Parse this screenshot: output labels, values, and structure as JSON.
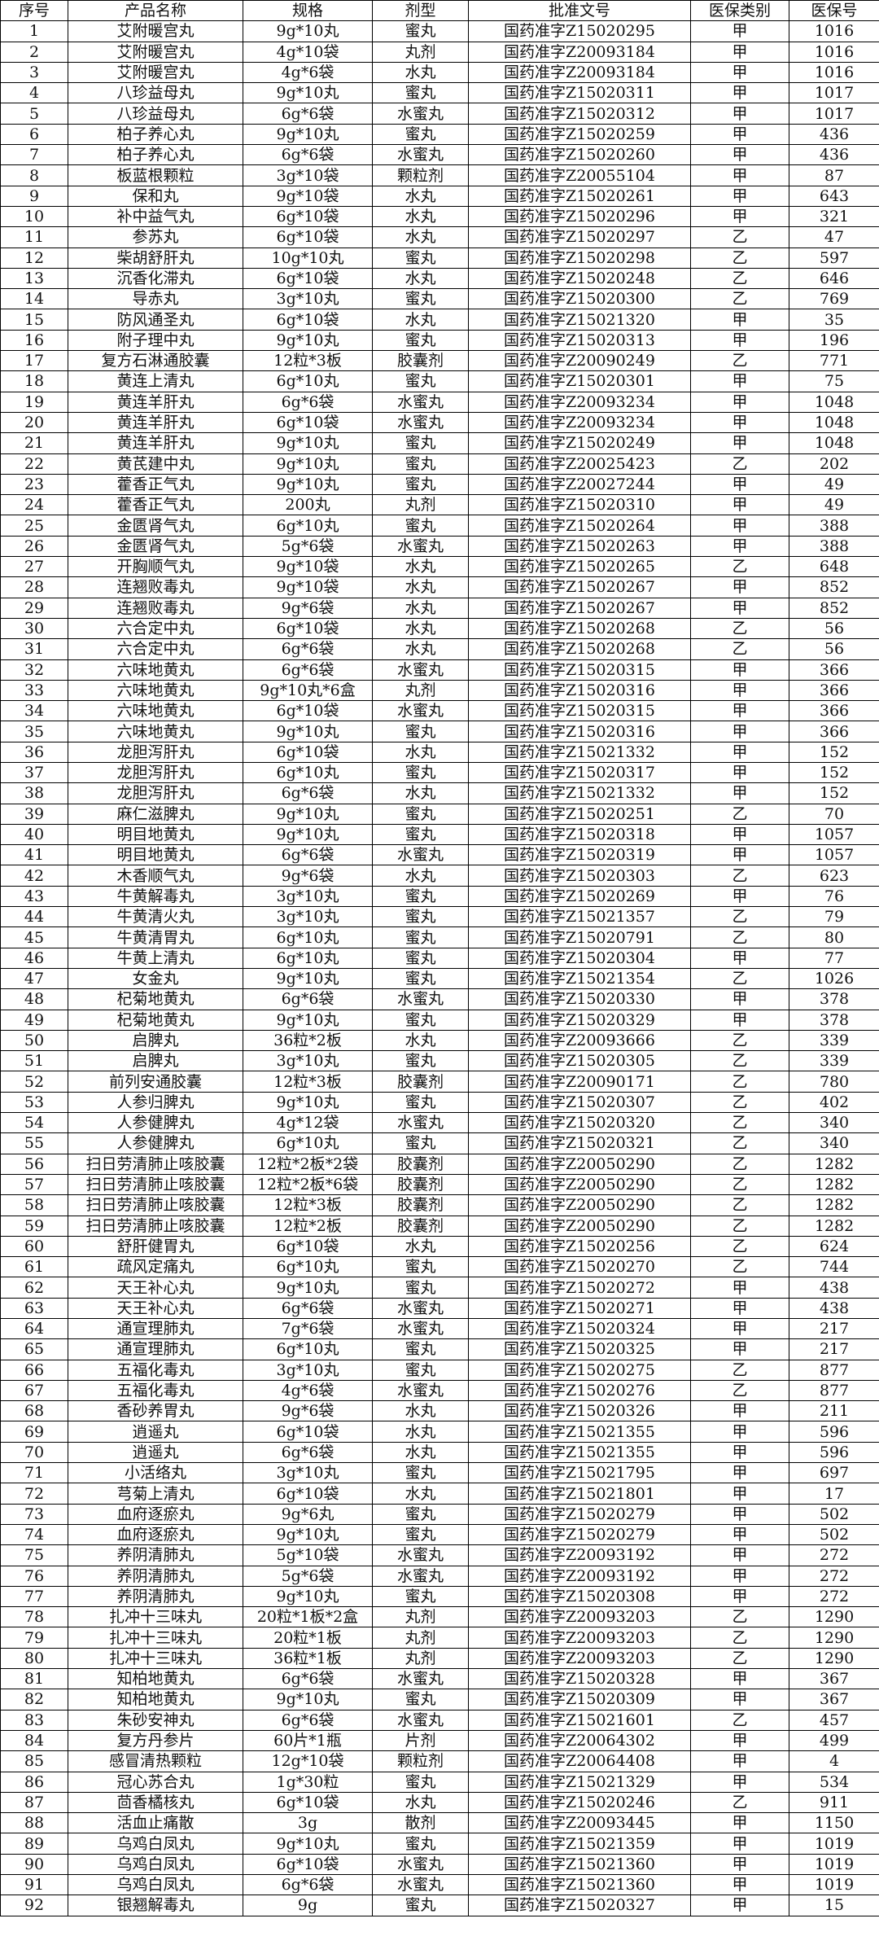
{
  "headers": [
    "序号",
    "产品名称",
    "规格",
    "剂型",
    "批准文号",
    "医保类别",
    "医保号"
  ],
  "rows": [
    [
      "1",
      "艾附暖宫丸",
      "9g*10丸",
      "蜜丸",
      "国药准字Z15020295",
      "甲",
      "1016"
    ],
    [
      "2",
      "艾附暖宫丸",
      "4g*10袋",
      "丸剂",
      "国药准字Z20093184",
      "甲",
      "1016"
    ],
    [
      "3",
      "艾附暖宫丸",
      "4g*6袋",
      "水丸",
      "国药准字Z20093184",
      "甲",
      "1016"
    ],
    [
      "4",
      "八珍益母丸",
      "9g*10丸",
      "蜜丸",
      "国药准字Z15020311",
      "甲",
      "1017"
    ],
    [
      "5",
      "八珍益母丸",
      "6g*6袋",
      "水蜜丸",
      "国药准字Z15020312",
      "甲",
      "1017"
    ],
    [
      "6",
      "柏子养心丸",
      "9g*10丸",
      "蜜丸",
      "国药准字Z15020259",
      "甲",
      "436"
    ],
    [
      "7",
      "柏子养心丸",
      "6g*6袋",
      "水蜜丸",
      "国药准字Z15020260",
      "甲",
      "436"
    ],
    [
      "8",
      "板蓝根颗粒",
      "3g*10袋",
      "颗粒剂",
      "国药准字Z20055104",
      "甲",
      "87"
    ],
    [
      "9",
      "保和丸",
      "9g*10袋",
      "水丸",
      "国药准字Z15020261",
      "甲",
      "643"
    ],
    [
      "10",
      "补中益气丸",
      "6g*10袋",
      "水丸",
      "国药准字Z15020296",
      "甲",
      "321"
    ],
    [
      "11",
      "参苏丸",
      "6g*10袋",
      "水丸",
      "国药准字Z15020297",
      "乙",
      "47"
    ],
    [
      "12",
      "柴胡舒肝丸",
      "10g*10丸",
      "蜜丸",
      "国药准字Z15020298",
      "乙",
      "597"
    ],
    [
      "13",
      "沉香化滞丸",
      "6g*10袋",
      "水丸",
      "国药准字Z15020248",
      "乙",
      "646"
    ],
    [
      "14",
      "导赤丸",
      "3g*10丸",
      "蜜丸",
      "国药准字Z15020300",
      "乙",
      "769"
    ],
    [
      "15",
      "防风通圣丸",
      "6g*10袋",
      "水丸",
      "国药准字Z15021320",
      "甲",
      "35"
    ],
    [
      "16",
      "附子理中丸",
      "9g*10丸",
      "蜜丸",
      "国药准字Z15020313",
      "甲",
      "196"
    ],
    [
      "17",
      "复方石淋通胶囊",
      "12粒*3板",
      "胶囊剂",
      "国药准字Z20090249",
      "乙",
      "771"
    ],
    [
      "18",
      "黄连上清丸",
      "6g*10丸",
      "蜜丸",
      "国药准字Z15020301",
      "甲",
      "75"
    ],
    [
      "19",
      "黄连羊肝丸",
      "6g*6袋",
      "水蜜丸",
      "国药准字Z20093234",
      "甲",
      "1048"
    ],
    [
      "20",
      "黄连羊肝丸",
      "6g*10袋",
      "水蜜丸",
      "国药准字Z20093234",
      "甲",
      "1048"
    ],
    [
      "21",
      "黄连羊肝丸",
      "9g*10丸",
      "蜜丸",
      "国药准字Z15020249",
      "甲",
      "1048"
    ],
    [
      "22",
      "黄芪建中丸",
      "9g*10丸",
      "蜜丸",
      "国药准字Z20025423",
      "乙",
      "202"
    ],
    [
      "23",
      "藿香正气丸",
      "9g*10丸",
      "蜜丸",
      "国药准字Z20027244",
      "甲",
      "49"
    ],
    [
      "24",
      "藿香正气丸",
      "200丸",
      "丸剂",
      "国药准字Z15020310",
      "甲",
      "49"
    ],
    [
      "25",
      "金匮肾气丸",
      "6g*10丸",
      "蜜丸",
      "国药准字Z15020264",
      "甲",
      "388"
    ],
    [
      "26",
      "金匮肾气丸",
      "5g*6袋",
      "水蜜丸",
      "国药准字Z15020263",
      "甲",
      "388"
    ],
    [
      "27",
      "开胸顺气丸",
      "9g*10袋",
      "水丸",
      "国药准字Z15020265",
      "乙",
      "648"
    ],
    [
      "28",
      "连翘败毒丸",
      "9g*10袋",
      "水丸",
      "国药准字Z15020267",
      "甲",
      "852"
    ],
    [
      "29",
      "连翘败毒丸",
      "9g*6袋",
      "水丸",
      "国药准字Z15020267",
      "甲",
      "852"
    ],
    [
      "30",
      "六合定中丸",
      "6g*10袋",
      "水丸",
      "国药准字Z15020268",
      "乙",
      "56"
    ],
    [
      "31",
      "六合定中丸",
      "6g*6袋",
      "水丸",
      "国药准字Z15020268",
      "乙",
      "56"
    ],
    [
      "32",
      "六味地黄丸",
      "6g*6袋",
      "水蜜丸",
      "国药准字Z15020315",
      "甲",
      "366"
    ],
    [
      "33",
      "六味地黄丸",
      "9g*10丸*6盒",
      "丸剂",
      "国药准字Z15020316",
      "甲",
      "366"
    ],
    [
      "34",
      "六味地黄丸",
      "6g*10袋",
      "水蜜丸",
      "国药准字Z15020315",
      "甲",
      "366"
    ],
    [
      "35",
      "六味地黄丸",
      "9g*10丸",
      "蜜丸",
      "国药准字Z15020316",
      "甲",
      "366"
    ],
    [
      "36",
      "龙胆泻肝丸",
      "6g*10袋",
      "水丸",
      "国药准字Z15021332",
      "甲",
      "152"
    ],
    [
      "37",
      "龙胆泻肝丸",
      "6g*10丸",
      "蜜丸",
      "国药准字Z15020317",
      "甲",
      "152"
    ],
    [
      "38",
      "龙胆泻肝丸",
      "6g*6袋",
      "水丸",
      "国药准字Z15021332",
      "甲",
      "152"
    ],
    [
      "39",
      "麻仁滋脾丸",
      "9g*10丸",
      "蜜丸",
      "国药准字Z15020251",
      "乙",
      "70"
    ],
    [
      "40",
      "明目地黄丸",
      "9g*10丸",
      "蜜丸",
      "国药准字Z15020318",
      "甲",
      "1057"
    ],
    [
      "41",
      "明目地黄丸",
      "6g*6袋",
      "水蜜丸",
      "国药准字Z15020319",
      "甲",
      "1057"
    ],
    [
      "42",
      "木香顺气丸",
      "9g*6袋",
      "水丸",
      "国药准字Z15020303",
      "乙",
      "623"
    ],
    [
      "43",
      "牛黄解毒丸",
      "3g*10丸",
      "蜜丸",
      "国药准字Z15020269",
      "甲",
      "76"
    ],
    [
      "44",
      "牛黄清火丸",
      "3g*10丸",
      "蜜丸",
      "国药准字Z15021357",
      "乙",
      "79"
    ],
    [
      "45",
      "牛黄清胃丸",
      "6g*10丸",
      "蜜丸",
      "国药准字Z15020791",
      "乙",
      "80"
    ],
    [
      "46",
      "牛黄上清丸",
      "6g*10丸",
      "蜜丸",
      "国药准字Z15020304",
      "甲",
      "77"
    ],
    [
      "47",
      "女金丸",
      "9g*10丸",
      "蜜丸",
      "国药准字Z15021354",
      "乙",
      "1026"
    ],
    [
      "48",
      "杞菊地黄丸",
      "6g*6袋",
      "水蜜丸",
      "国药准字Z15020330",
      "甲",
      "378"
    ],
    [
      "49",
      "杞菊地黄丸",
      "9g*10丸",
      "蜜丸",
      "国药准字Z15020329",
      "甲",
      "378"
    ],
    [
      "50",
      "启脾丸",
      "36粒*2板",
      "水丸",
      "国药准字Z20093666",
      "乙",
      "339"
    ],
    [
      "51",
      "启脾丸",
      "3g*10丸",
      "蜜丸",
      "国药准字Z15020305",
      "乙",
      "339"
    ],
    [
      "52",
      "前列安通胶囊",
      "12粒*3板",
      "胶囊剂",
      "国药准字Z20090171",
      "乙",
      "780"
    ],
    [
      "53",
      "人参归脾丸",
      "9g*10丸",
      "蜜丸",
      "国药准字Z15020307",
      "乙",
      "402"
    ],
    [
      "54",
      "人参健脾丸",
      "4g*12袋",
      "水蜜丸",
      "国药准字Z15020320",
      "乙",
      "340"
    ],
    [
      "55",
      "人参健脾丸",
      "6g*10丸",
      "蜜丸",
      "国药准字Z15020321",
      "乙",
      "340"
    ],
    [
      "56",
      "扫日劳清肺止咳胶囊",
      "12粒*2板*2袋",
      "胶囊剂",
      "国药准字Z20050290",
      "乙",
      "1282"
    ],
    [
      "57",
      "扫日劳清肺止咳胶囊",
      "12粒*2板*6袋",
      "胶囊剂",
      "国药准字Z20050290",
      "乙",
      "1282"
    ],
    [
      "58",
      "扫日劳清肺止咳胶囊",
      "12粒*3板",
      "胶囊剂",
      "国药准字Z20050290",
      "乙",
      "1282"
    ],
    [
      "59",
      "扫日劳清肺止咳胶囊",
      "12粒*2板",
      "胶囊剂",
      "国药准字Z20050290",
      "乙",
      "1282"
    ],
    [
      "60",
      "舒肝健胃丸",
      "6g*10袋",
      "水丸",
      "国药准字Z15020256",
      "乙",
      "624"
    ],
    [
      "61",
      "疏风定痛丸",
      "6g*10丸",
      "蜜丸",
      "国药准字Z15020270",
      "乙",
      "744"
    ],
    [
      "62",
      "天王补心丸",
      "9g*10丸",
      "蜜丸",
      "国药准字Z15020272",
      "甲",
      "438"
    ],
    [
      "63",
      "天王补心丸",
      "6g*6袋",
      "水蜜丸",
      "国药准字Z15020271",
      "甲",
      "438"
    ],
    [
      "64",
      "通宣理肺丸",
      "7g*6袋",
      "水蜜丸",
      "国药准字Z15020324",
      "甲",
      "217"
    ],
    [
      "65",
      "通宣理肺丸",
      "6g*10丸",
      "蜜丸",
      "国药准字Z15020325",
      "甲",
      "217"
    ],
    [
      "66",
      "五福化毒丸",
      "3g*10丸",
      "蜜丸",
      "国药准字Z15020275",
      "乙",
      "877"
    ],
    [
      "67",
      "五福化毒丸",
      "4g*6袋",
      "水蜜丸",
      "国药准字Z15020276",
      "乙",
      "877"
    ],
    [
      "68",
      "香砂养胃丸",
      "9g*6袋",
      "水丸",
      "国药准字Z15020326",
      "甲",
      "211"
    ],
    [
      "69",
      "逍遥丸",
      "6g*10袋",
      "水丸",
      "国药准字Z15021355",
      "甲",
      "596"
    ],
    [
      "70",
      "逍遥丸",
      "6g*6袋",
      "水丸",
      "国药准字Z15021355",
      "甲",
      "596"
    ],
    [
      "71",
      "小活络丸",
      "3g*10丸",
      "蜜丸",
      "国药准字Z15021795",
      "甲",
      "697"
    ],
    [
      "72",
      "芎菊上清丸",
      "6g*10袋",
      "水丸",
      "国药准字Z15021801",
      "甲",
      "17"
    ],
    [
      "73",
      "血府逐瘀丸",
      "9g*6丸",
      "蜜丸",
      "国药准字Z15020279",
      "甲",
      "502"
    ],
    [
      "74",
      "血府逐瘀丸",
      "9g*10丸",
      "蜜丸",
      "国药准字Z15020279",
      "甲",
      "502"
    ],
    [
      "75",
      "养阴清肺丸",
      "5g*10袋",
      "水蜜丸",
      "国药准字Z20093192",
      "甲",
      "272"
    ],
    [
      "76",
      "养阴清肺丸",
      "5g*6袋",
      "水蜜丸",
      "国药准字Z20093192",
      "甲",
      "272"
    ],
    [
      "77",
      "养阴清肺丸",
      "9g*10丸",
      "蜜丸",
      "国药准字Z15020308",
      "甲",
      "272"
    ],
    [
      "78",
      "扎冲十三味丸",
      "20粒*1板*2盒",
      "丸剂",
      "国药准字Z20093203",
      "乙",
      "1290"
    ],
    [
      "79",
      "扎冲十三味丸",
      "20粒*1板",
      "丸剂",
      "国药准字Z20093203",
      "乙",
      "1290"
    ],
    [
      "80",
      "扎冲十三味丸",
      "36粒*1板",
      "丸剂",
      "国药准字Z20093203",
      "乙",
      "1290"
    ],
    [
      "81",
      "知柏地黄丸",
      "6g*6袋",
      "水蜜丸",
      "国药准字Z15020328",
      "甲",
      "367"
    ],
    [
      "82",
      "知柏地黄丸",
      "9g*10丸",
      "蜜丸",
      "国药准字Z15020309",
      "甲",
      "367"
    ],
    [
      "83",
      "朱砂安神丸",
      "6g*6袋",
      "水蜜丸",
      "国药准字Z15021601",
      "乙",
      "457"
    ],
    [
      "84",
      "复方丹参片",
      "60片*1瓶",
      "片剂",
      "国药准字Z20064302",
      "甲",
      "499"
    ],
    [
      "85",
      "感冒清热颗粒",
      "12g*10袋",
      "颗粒剂",
      "国药准字Z20064408",
      "甲",
      "4"
    ],
    [
      "86",
      "冠心苏合丸",
      "1g*30粒",
      "蜜丸",
      "国药准字Z15021329",
      "甲",
      "534"
    ],
    [
      "87",
      "茴香橘核丸",
      "6g*10袋",
      "水丸",
      "国药准字Z15020246",
      "乙",
      "911"
    ],
    [
      "88",
      "活血止痛散",
      "3g",
      "散剂",
      "国药准字Z20093445",
      "甲",
      "1150"
    ],
    [
      "89",
      "乌鸡白凤丸",
      "9g*10丸",
      "蜜丸",
      "国药准字Z15021359",
      "甲",
      "1019"
    ],
    [
      "90",
      "乌鸡白凤丸",
      "6g*10袋",
      "水蜜丸",
      "国药准字Z15021360",
      "甲",
      "1019"
    ],
    [
      "91",
      "乌鸡白凤丸",
      "6g*6袋",
      "水蜜丸",
      "国药准字Z15021360",
      "甲",
      "1019"
    ],
    [
      "92",
      "银翘解毒丸",
      "9g",
      "蜜丸",
      "国药准字Z15020327",
      "甲",
      "15"
    ]
  ]
}
